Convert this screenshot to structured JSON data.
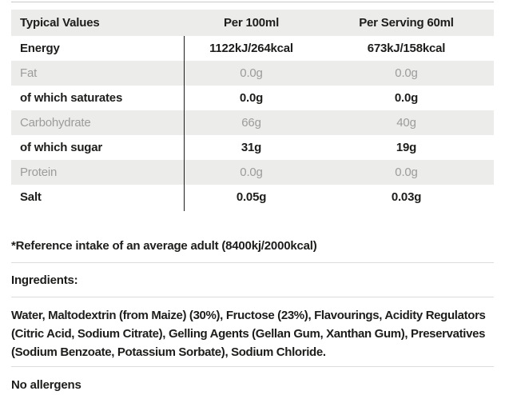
{
  "table": {
    "columns": {
      "c1": "Typical Values",
      "c2": "Per 100ml",
      "c3": "Per Serving 60ml"
    },
    "rows": [
      {
        "label": "Energy",
        "per100": "1122kJ/264kcal",
        "serving": "673kJ/158kcal"
      },
      {
        "label": "Fat",
        "per100": "0.0g",
        "serving": "0.0g"
      },
      {
        "label": "of which saturates",
        "per100": "0.0g",
        "serving": "0.0g"
      },
      {
        "label": "Carbohydrate",
        "per100": "66g",
        "serving": "40g"
      },
      {
        "label": "of which sugar",
        "per100": "31g",
        "serving": "19g"
      },
      {
        "label": "Protein",
        "per100": "0.0g",
        "serving": "0.0g"
      },
      {
        "label": "Salt",
        "per100": "0.05g",
        "serving": "0.03g"
      }
    ]
  },
  "notes": {
    "reference": "*Reference intake of an average adult (8400kj/2000kcal)",
    "ingredients_label": "Ingredients:",
    "ingredients_text": "Water, Maltodextrin (from Maize) (30%), Fructose (23%), Flavourings, Acidity Regulators (Citric Acid, Sodium Citrate), Gelling Agents (Gellan Gum, Xanthan Gum), Preservatives (Sodium Benzoate, Potassium Sorbate), Sodium Chloride.",
    "allergens": "No allergens"
  },
  "colors": {
    "row_shade": "#ececea",
    "muted_text": "#9c9c9c",
    "text": "#1d1d1b",
    "divider": "#dcdcdc",
    "column_rule": "#1d1d1b"
  }
}
